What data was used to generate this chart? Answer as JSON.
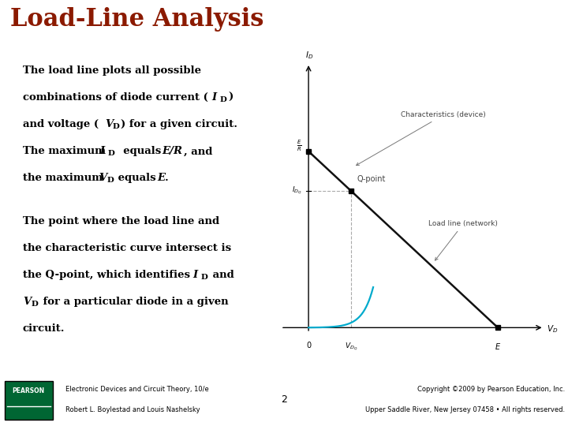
{
  "title": "Load-Line Analysis",
  "title_color": "#8B1A00",
  "title_fontsize": 22,
  "bg_color": "#FFFFFF",
  "footer_left_1": "Electronic Devices and Circuit Theory, 10/e",
  "footer_left_2": "Robert L. Boylestad and Louis Nashelsky",
  "footer_center": "2",
  "footer_right_1": "Copyright ©2009 by Pearson Education, Inc.",
  "footer_right_2": "Upper Saddle River, New Jersey 07458 • All rights reserved.",
  "diagram_bg": "#F8F8F4",
  "diagram_border": "#AAAAAA",
  "load_line_color": "#111111",
  "diode_curve_color": "#00AACC",
  "dashed_line_color": "#AAAAAA",
  "annotation_color": "#444444",
  "pearson_box_color": "#006633",
  "pearson_text_color": "#FFFFFF",
  "footer_line_color": "#006633",
  "body_fontsize": 9.5,
  "anno_fontsize": 6.5
}
